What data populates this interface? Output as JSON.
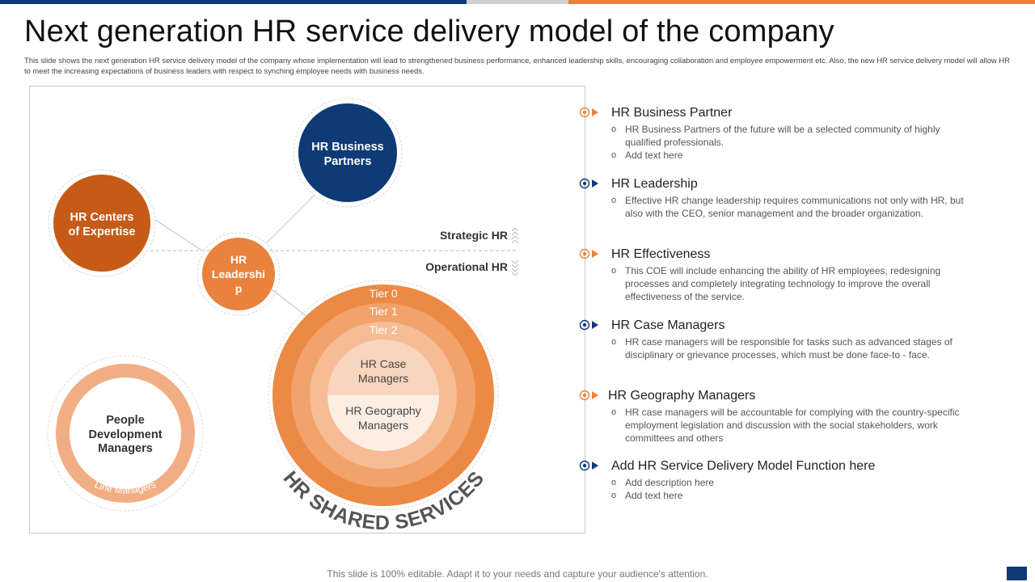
{
  "colors": {
    "navy": "#0e3a75",
    "orange": "#e8823c",
    "dark_orange": "#c65a17",
    "grey_bar": "#d0d0d0"
  },
  "title": "Next generation HR service delivery model of the company",
  "subtitle": "This slide shows the next generation HR service delivery model of the company whose implementation will lead to strengthened business performance, enhanced leadership skills, encouraging collaboration and employee empowerment etc. Also, the new HR service delivery model will allow HR to meet the increasing expectations of business leaders with respect to synching employee needs with business needs.",
  "diagram": {
    "hr_business_partners": [
      "HR Business",
      "Partners"
    ],
    "hr_centers_of_expertise": [
      "HR Centers",
      "of Expertise"
    ],
    "hr_leadership": [
      "HR",
      "Leadershi",
      "p"
    ],
    "strategic_hr": "Strategic HR",
    "operational_hr": "Operational  HR",
    "tier0": "Tier 0",
    "tier1": "Tier 1",
    "tier2": "Tier 2",
    "hr_case_managers": [
      "HR Case",
      "Managers"
    ],
    "hr_geography_managers": [
      "HR Geography",
      "Managers"
    ],
    "hr_shared_services": "HR SHARED SERVICES",
    "people_development_managers": [
      "People",
      "Development",
      "Managers"
    ],
    "line_managers": "Line Managers"
  },
  "items": [
    {
      "title": "HR Business Partner",
      "marker": "orange",
      "bullets": [
        "HR Business Partners of the future will be a selected community of highly qualified professionals.",
        "Add text here"
      ]
    },
    {
      "title": "HR Leadership",
      "marker": "navy",
      "bullets": [
        "Effective HR change leadership requires communications not only with HR, but also with the CEO, senior management and the broader organization."
      ]
    },
    {
      "title": "HR Effectiveness",
      "marker": "orange",
      "bullets": [
        "This COE will include enhancing the ability of HR employees, redesigning processes and completely integrating technology to improve the overall effectiveness of the service."
      ]
    },
    {
      "title": "HR Case Managers",
      "marker": "navy",
      "bullets": [
        "HR case managers will be responsible for tasks such as advanced stages of disciplinary or grievance processes, which must be done face-to - face."
      ]
    },
    {
      "title": "HR Geography Managers",
      "marker": "orange",
      "bullets": [
        "HR case managers will be accountable for complying with the country-specific employment legislation and discussion with the social stakeholders, work committees and others"
      ]
    },
    {
      "title": "Add HR Service Delivery Model Function here",
      "marker": "navy",
      "bullets": [
        "Add description here",
        "Add text here"
      ]
    }
  ],
  "footer": "This slide is 100% editable. Adapt it to your needs and capture your audience's attention."
}
